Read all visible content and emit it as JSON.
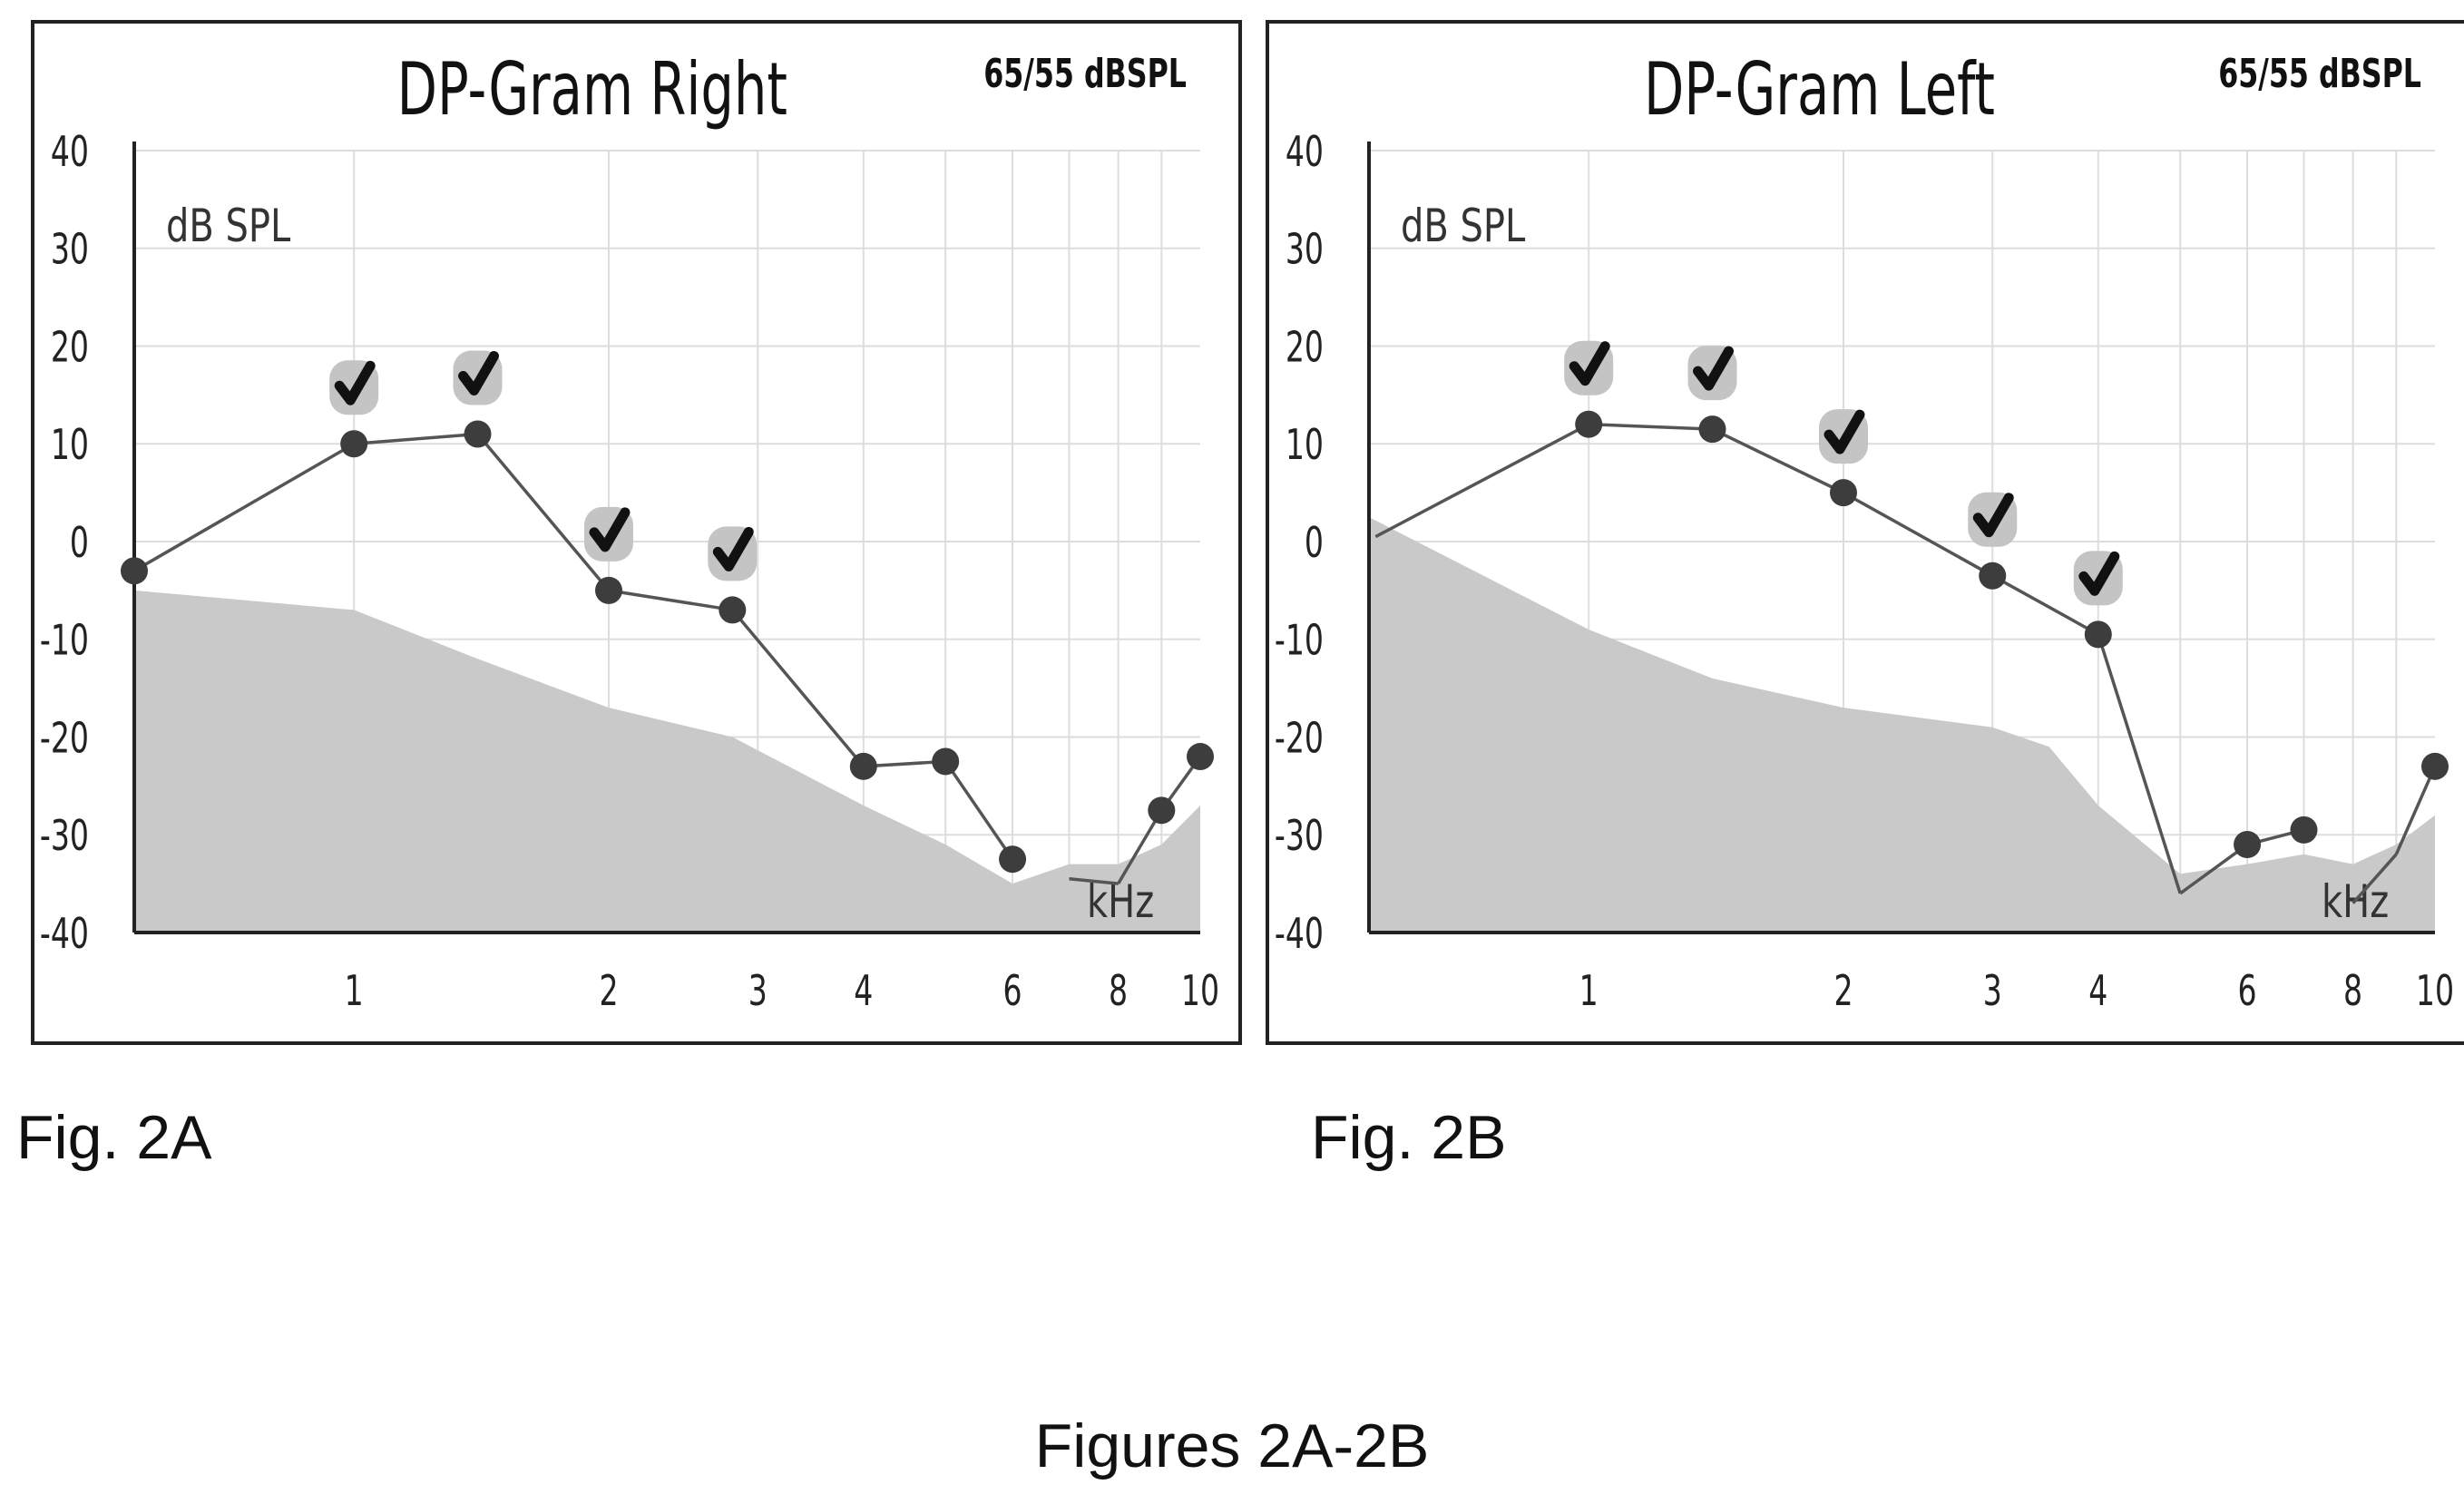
{
  "figures_caption": "Figures 2A-2B",
  "colors": {
    "noise_floor": "#c9c9c9",
    "line": "#555555",
    "marker": "#3d3d3d",
    "grid": "#dddddd",
    "axis": "#222222",
    "check_badge": "#c4c4c4",
    "check_mark": "#111111"
  },
  "chart_data": [
    {
      "type": "line",
      "caption": "Fig. 2A",
      "title": "DP-Gram Right",
      "subtitle": "65/55 dBSPL",
      "ylabel": "dB SPL",
      "xlabel": "kHz",
      "x_scale": "log",
      "xlim": [
        0.55,
        10
      ],
      "ylim": [
        -40,
        40
      ],
      "yticks": [
        40,
        30,
        20,
        10,
        0,
        -10,
        -20,
        -30,
        -40
      ],
      "xticks": [
        1,
        2,
        3,
        4,
        6,
        8,
        10
      ],
      "grid": true,
      "series": [
        {
          "x": [
            0.55,
            1.0,
            1.4,
            2.0,
            2.8,
            4.0,
            5.0,
            6.0,
            7.0,
            8.0,
            9.0,
            10.0
          ],
          "y": [
            -3,
            10,
            11,
            -5,
            -7,
            -23,
            -22.5,
            -32.5,
            -34.5,
            -35,
            -27.5,
            -22
          ],
          "marker": [
            true,
            true,
            true,
            true,
            true,
            true,
            true,
            true,
            false,
            false,
            true,
            true
          ],
          "check": [
            false,
            true,
            true,
            true,
            true,
            false,
            false,
            false,
            false,
            false,
            false,
            false
          ],
          "segments_break_after": [
            7
          ]
        }
      ],
      "noise_floor": {
        "x": [
          0.55,
          1.0,
          1.4,
          2.0,
          2.8,
          4.0,
          5.0,
          6.0,
          7.0,
          8.0,
          9.0,
          10.0
        ],
        "y": [
          -5,
          -7,
          -12,
          -17,
          -20,
          -27,
          -31,
          -35,
          -33,
          -33,
          -31,
          -27
        ]
      }
    },
    {
      "type": "line",
      "caption": "Fig. 2B",
      "title": "DP-Gram Left",
      "subtitle": "65/55 dBSPL",
      "ylabel": "dB SPL",
      "xlabel": "kHz",
      "x_scale": "log",
      "xlim": [
        0.55,
        10
      ],
      "ylim": [
        -40,
        40
      ],
      "yticks": [
        40,
        30,
        20,
        10,
        0,
        -10,
        -20,
        -30,
        -40
      ],
      "xticks": [
        1,
        2,
        3,
        4,
        6,
        8,
        10
      ],
      "grid": true,
      "series": [
        {
          "x": [
            0.56,
            1.0,
            1.4,
            2.0,
            3.0,
            4.0,
            5.0,
            6.0,
            7.0,
            8.0,
            9.0,
            10.0
          ],
          "y": [
            0.5,
            12,
            11.5,
            5,
            -3.5,
            -9.5,
            -36,
            -31,
            -29.5,
            -37,
            -32,
            -23
          ],
          "marker": [
            false,
            true,
            true,
            true,
            true,
            true,
            false,
            true,
            true,
            false,
            false,
            true
          ],
          "check": [
            false,
            true,
            true,
            true,
            true,
            true,
            false,
            false,
            false,
            false,
            false,
            false
          ],
          "segments_break_after": [
            8
          ]
        }
      ],
      "noise_floor": {
        "x": [
          0.55,
          1.0,
          1.4,
          2.0,
          3.0,
          3.5,
          4.0,
          5.0,
          6.0,
          7.0,
          8.0,
          9.0,
          10.0
        ],
        "y": [
          2.5,
          -9,
          -14,
          -17,
          -19,
          -21,
          -27,
          -34,
          -33,
          -32,
          -33,
          -31,
          -28
        ]
      }
    }
  ]
}
